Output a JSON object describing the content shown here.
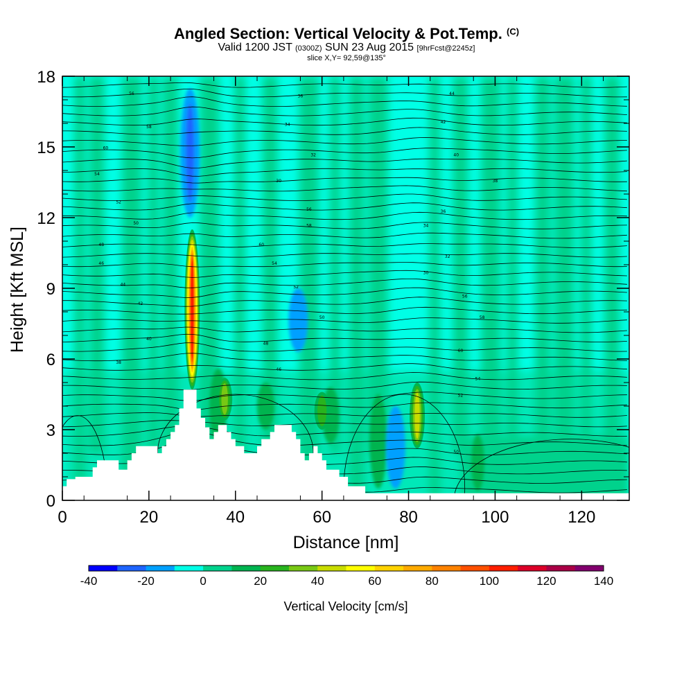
{
  "header": {
    "title": "Angled Section: Vertical Velocity & Pot.Temp.",
    "title_suffix": "(C)",
    "subtitle_a": "Valid 1200 JST",
    "subtitle_b": "(0300Z)",
    "subtitle_c": "SUN 23 Aug 2015",
    "subtitle_d": "[9hrFcst@2245z]",
    "slice": "slice X,Y= 92,59@135°"
  },
  "chart_data": {
    "type": "heatmap",
    "xlabel": "Distance [nm]",
    "ylabel": "Height [Kft MSL]",
    "xlim": [
      0,
      131
    ],
    "ylim": [
      0,
      18
    ],
    "x_ticks": [
      0,
      20,
      40,
      60,
      80,
      100,
      120
    ],
    "y_ticks": [
      0,
      3,
      6,
      9,
      12,
      15,
      18
    ],
    "grid": false,
    "colorbar": {
      "title": "Vertical Velocity [cm/s]",
      "placement": "bottom",
      "tick_values": [
        -40,
        -20,
        0,
        20,
        40,
        60,
        80,
        100,
        120,
        140
      ],
      "levels": [
        -40,
        -30,
        -20,
        -10,
        0,
        10,
        20,
        30,
        40,
        50,
        60,
        70,
        80,
        90,
        100,
        110,
        120,
        130,
        140
      ],
      "colors": [
        "#0000ff",
        "#1e64ff",
        "#00a0ff",
        "#00ffe6",
        "#00d28c",
        "#00b450",
        "#28b41e",
        "#78c814",
        "#c8dc00",
        "#ffff00",
        "#ffd200",
        "#ffaa00",
        "#ff8200",
        "#ff5000",
        "#ff1e00",
        "#dc0028",
        "#aa0046",
        "#82006e"
      ]
    },
    "background_color": "#00ffe6",
    "updraft_cores": [
      {
        "x": 30,
        "y_bottom": 4.7,
        "y_top": 11.5,
        "peak_cm_s": 110
      },
      {
        "x": 37.5,
        "y_bottom": 3.4,
        "y_top": 5.2,
        "peak_cm_s": 40
      },
      {
        "x": 60,
        "y_bottom": 3.0,
        "y_top": 4.6,
        "peak_cm_s": 30
      },
      {
        "x": 82,
        "y_bottom": 2.2,
        "y_top": 5.0,
        "peak_cm_s": 50
      }
    ],
    "downdraft_areas": [
      {
        "x": 77,
        "y_bottom": 0.5,
        "y_top": 4.0,
        "min_cm_s": -20
      },
      {
        "x": 29.5,
        "y_bottom": 12,
        "y_top": 17.5,
        "min_cm_s": -30
      },
      {
        "x": 54.5,
        "y_bottom": 6.3,
        "y_top": 9,
        "min_cm_s": -20
      }
    ],
    "terrain": [
      [
        0,
        0.6
      ],
      [
        1,
        0.6
      ],
      [
        1,
        0.9
      ],
      [
        3,
        0.9
      ],
      [
        3,
        1.0
      ],
      [
        7,
        1.0
      ],
      [
        7,
        1.4
      ],
      [
        8,
        1.4
      ],
      [
        8,
        1.7
      ],
      [
        13,
        1.7
      ],
      [
        13,
        1.3
      ],
      [
        15,
        1.3
      ],
      [
        15,
        1.7
      ],
      [
        16,
        1.7
      ],
      [
        16,
        2.0
      ],
      [
        17,
        2.0
      ],
      [
        17,
        2.3
      ],
      [
        22,
        2.3
      ],
      [
        22,
        2.0
      ],
      [
        23,
        2.0
      ],
      [
        23,
        2.3
      ],
      [
        24,
        2.3
      ],
      [
        24,
        2.6
      ],
      [
        25,
        2.6
      ],
      [
        25,
        2.9
      ],
      [
        26,
        2.9
      ],
      [
        26,
        3.2
      ],
      [
        27,
        3.2
      ],
      [
        27,
        3.9
      ],
      [
        28,
        3.9
      ],
      [
        28,
        4.7
      ],
      [
        31,
        4.7
      ],
      [
        31,
        3.9
      ],
      [
        32,
        3.9
      ],
      [
        32,
        3.5
      ],
      [
        33,
        3.5
      ],
      [
        33,
        3.1
      ],
      [
        34,
        3.1
      ],
      [
        34,
        2.6
      ],
      [
        35,
        2.6
      ],
      [
        35,
        2.9
      ],
      [
        36,
        2.9
      ],
      [
        36,
        3.2
      ],
      [
        38,
        3.2
      ],
      [
        38,
        2.9
      ],
      [
        39,
        2.9
      ],
      [
        39,
        2.6
      ],
      [
        40,
        2.6
      ],
      [
        40,
        2.3
      ],
      [
        42,
        2.3
      ],
      [
        42,
        2.0
      ],
      [
        45,
        2.0
      ],
      [
        45,
        2.3
      ],
      [
        46,
        2.3
      ],
      [
        46,
        2.6
      ],
      [
        48,
        2.6
      ],
      [
        48,
        2.9
      ],
      [
        49,
        2.9
      ],
      [
        49,
        3.2
      ],
      [
        53,
        3.2
      ],
      [
        53,
        2.9
      ],
      [
        54,
        2.9
      ],
      [
        54,
        2.6
      ],
      [
        55,
        2.6
      ],
      [
        55,
        2.0
      ],
      [
        56,
        2.0
      ],
      [
        56,
        1.7
      ],
      [
        57,
        1.7
      ],
      [
        57,
        2.0
      ],
      [
        58,
        2.0
      ],
      [
        58,
        2.3
      ],
      [
        59,
        2.3
      ],
      [
        59,
        2.0
      ],
      [
        60,
        2.0
      ],
      [
        60,
        1.7
      ],
      [
        61,
        1.7
      ],
      [
        61,
        1.3
      ],
      [
        64,
        1.3
      ],
      [
        64,
        1.0
      ],
      [
        66,
        1.0
      ],
      [
        66,
        0.6
      ],
      [
        70,
        0.6
      ],
      [
        70,
        0.3
      ],
      [
        131,
        0.3
      ],
      [
        131,
        0
      ]
    ],
    "theta_labels": [
      "56",
      "58",
      "60",
      "54",
      "52",
      "50",
      "48",
      "46",
      "44",
      "42",
      "40",
      "38",
      "36",
      "34",
      "32",
      "30"
    ]
  }
}
